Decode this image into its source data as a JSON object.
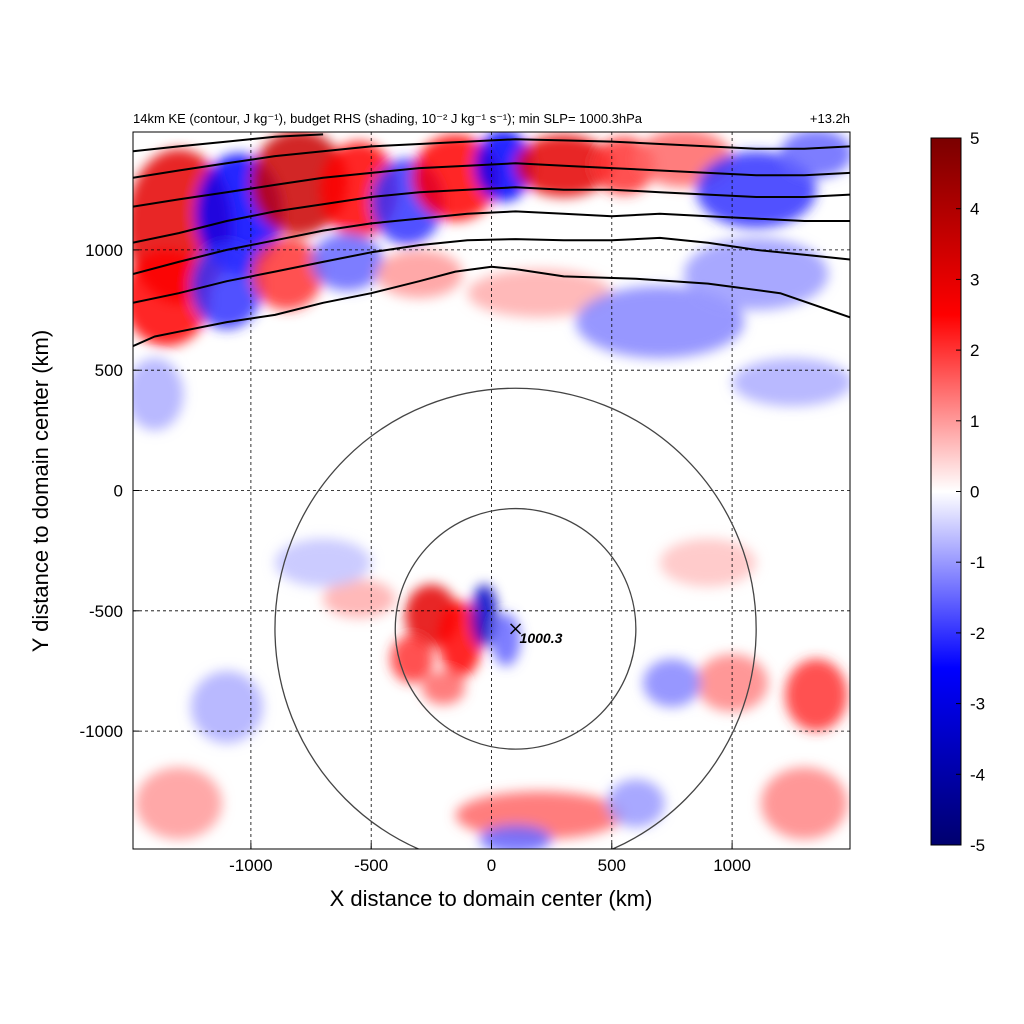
{
  "title_left": "14km KE (contour, J kg⁻¹), budget RHS (shading, 10⁻² J kg⁻¹ s⁻¹); min SLP= 1000.3hPa",
  "title_right": "+13.2h",
  "chart_data": {
    "type": "heatmap",
    "xlabel": "X distance to domain center (km)",
    "ylabel": "Y distance to domain center (km)",
    "xlim": [
      -1490,
      1490
    ],
    "ylim": [
      -1490,
      1490
    ],
    "x_ticks": [
      -1000,
      -500,
      0,
      500,
      1000
    ],
    "y_ticks": [
      -1000,
      -500,
      0,
      500,
      1000
    ],
    "x_tick_labels": [
      "-1000",
      "-500",
      "0",
      "500",
      "1000"
    ],
    "y_tick_labels": [
      "-1000",
      "-500",
      "0",
      "500",
      "1000"
    ],
    "grid": true,
    "colorbar": {
      "min": -5,
      "max": 5,
      "ticks": [
        5,
        4,
        3,
        2,
        1,
        0,
        -1,
        -2,
        -3,
        -4,
        -5
      ],
      "tick_labels": [
        "5",
        "4",
        "3",
        "2",
        "1",
        "0",
        "-1",
        "-2",
        "-3",
        "-4",
        "-5"
      ],
      "colors": [
        "#00006e",
        "#0000ff",
        "#ffffff",
        "#ff0000",
        "#7a0000"
      ]
    },
    "storm_center": {
      "x": 100,
      "y": -575,
      "label": "1000.3"
    },
    "range_rings_km": [
      500,
      1000
    ],
    "ke_contours": [
      {
        "points": [
          [
            -1490,
            600
          ],
          [
            -1400,
            640
          ],
          [
            -1300,
            660
          ],
          [
            -1100,
            700
          ],
          [
            -900,
            730
          ],
          [
            -700,
            780
          ],
          [
            -500,
            820
          ],
          [
            -300,
            870
          ],
          [
            -150,
            910
          ],
          [
            0,
            930
          ],
          [
            100,
            920
          ],
          [
            300,
            890
          ],
          [
            600,
            880
          ],
          [
            900,
            860
          ],
          [
            1200,
            820
          ],
          [
            1490,
            720
          ]
        ]
      },
      {
        "points": [
          [
            -1490,
            780
          ],
          [
            -1300,
            820
          ],
          [
            -1100,
            870
          ],
          [
            -900,
            910
          ],
          [
            -700,
            950
          ],
          [
            -500,
            990
          ],
          [
            -300,
            1020
          ],
          [
            -100,
            1040
          ],
          [
            100,
            1045
          ],
          [
            300,
            1040
          ],
          [
            500,
            1040
          ],
          [
            700,
            1050
          ],
          [
            900,
            1030
          ],
          [
            1100,
            1000
          ],
          [
            1300,
            980
          ],
          [
            1490,
            960
          ]
        ]
      },
      {
        "points": [
          [
            -1490,
            900
          ],
          [
            -1300,
            950
          ],
          [
            -1100,
            1000
          ],
          [
            -900,
            1040
          ],
          [
            -700,
            1080
          ],
          [
            -500,
            1110
          ],
          [
            -300,
            1130
          ],
          [
            -100,
            1150
          ],
          [
            100,
            1160
          ],
          [
            300,
            1150
          ],
          [
            500,
            1140
          ],
          [
            700,
            1150
          ],
          [
            900,
            1140
          ],
          [
            1100,
            1130
          ],
          [
            1300,
            1120
          ],
          [
            1490,
            1120
          ]
        ]
      },
      {
        "points": [
          [
            -1490,
            1030
          ],
          [
            -1300,
            1070
          ],
          [
            -1100,
            1120
          ],
          [
            -900,
            1160
          ],
          [
            -700,
            1190
          ],
          [
            -500,
            1220
          ],
          [
            -300,
            1240
          ],
          [
            -100,
            1250
          ],
          [
            100,
            1260
          ],
          [
            300,
            1250
          ],
          [
            500,
            1250
          ],
          [
            700,
            1240
          ],
          [
            900,
            1230
          ],
          [
            1100,
            1220
          ],
          [
            1300,
            1220
          ],
          [
            1490,
            1230
          ]
        ]
      },
      {
        "points": [
          [
            -1490,
            1180
          ],
          [
            -1300,
            1210
          ],
          [
            -1100,
            1240
          ],
          [
            -900,
            1270
          ],
          [
            -700,
            1300
          ],
          [
            -500,
            1320
          ],
          [
            -300,
            1340
          ],
          [
            -100,
            1350
          ],
          [
            100,
            1360
          ],
          [
            300,
            1350
          ],
          [
            500,
            1340
          ],
          [
            700,
            1330
          ],
          [
            900,
            1320
          ],
          [
            1100,
            1310
          ],
          [
            1300,
            1310
          ],
          [
            1490,
            1320
          ]
        ]
      },
      {
        "points": [
          [
            -1490,
            1300
          ],
          [
            -1300,
            1330
          ],
          [
            -1100,
            1360
          ],
          [
            -900,
            1390
          ],
          [
            -700,
            1410
          ],
          [
            -500,
            1430
          ],
          [
            -300,
            1440
          ],
          [
            -100,
            1450
          ],
          [
            100,
            1460
          ],
          [
            300,
            1455
          ],
          [
            500,
            1450
          ],
          [
            700,
            1440
          ],
          [
            900,
            1430
          ],
          [
            1100,
            1420
          ],
          [
            1300,
            1420
          ],
          [
            1490,
            1430
          ]
        ]
      },
      {
        "points": [
          [
            -1490,
            1410
          ],
          [
            -1300,
            1430
          ],
          [
            -1100,
            1450
          ],
          [
            -900,
            1470
          ],
          [
            -700,
            1480
          ]
        ]
      }
    ],
    "shading_blobs": [
      {
        "x": -1300,
        "y": 1100,
        "rx": 220,
        "ry": 320,
        "v": 3.0
      },
      {
        "x": -1050,
        "y": 1150,
        "rx": 180,
        "ry": 250,
        "v": -2.5
      },
      {
        "x": -800,
        "y": 1280,
        "rx": 200,
        "ry": 220,
        "v": 3.5
      },
      {
        "x": -550,
        "y": 1250,
        "rx": 160,
        "ry": 200,
        "v": 2.5
      },
      {
        "x": -350,
        "y": 1200,
        "rx": 150,
        "ry": 180,
        "v": -2.0
      },
      {
        "x": -150,
        "y": 1300,
        "rx": 180,
        "ry": 180,
        "v": 2.5
      },
      {
        "x": 50,
        "y": 1350,
        "rx": 120,
        "ry": 150,
        "v": -2.5
      },
      {
        "x": 300,
        "y": 1350,
        "rx": 200,
        "ry": 130,
        "v": 3.0
      },
      {
        "x": 550,
        "y": 1350,
        "rx": 130,
        "ry": 120,
        "v": 2.0
      },
      {
        "x": 800,
        "y": 1380,
        "rx": 200,
        "ry": 120,
        "v": 1.5
      },
      {
        "x": 1100,
        "y": 1250,
        "rx": 250,
        "ry": 160,
        "v": -2.0
      },
      {
        "x": 1350,
        "y": 1400,
        "rx": 150,
        "ry": 100,
        "v": -1.5
      },
      {
        "x": -1350,
        "y": 800,
        "rx": 180,
        "ry": 200,
        "v": 2.5
      },
      {
        "x": -1100,
        "y": 850,
        "rx": 150,
        "ry": 180,
        "v": -2.0
      },
      {
        "x": -850,
        "y": 900,
        "rx": 150,
        "ry": 150,
        "v": 2.0
      },
      {
        "x": -600,
        "y": 950,
        "rx": 150,
        "ry": 120,
        "v": -1.5
      },
      {
        "x": -300,
        "y": 900,
        "rx": 180,
        "ry": 100,
        "v": 1.0
      },
      {
        "x": 200,
        "y": 820,
        "rx": 300,
        "ry": 100,
        "v": 0.8
      },
      {
        "x": 700,
        "y": 700,
        "rx": 350,
        "ry": 150,
        "v": -1.2
      },
      {
        "x": 1100,
        "y": 900,
        "rx": 300,
        "ry": 150,
        "v": -1.0
      },
      {
        "x": 1250,
        "y": 450,
        "rx": 250,
        "ry": 100,
        "v": -0.8
      },
      {
        "x": -1400,
        "y": 400,
        "rx": 120,
        "ry": 150,
        "v": -0.8
      },
      {
        "x": -250,
        "y": -520,
        "rx": 110,
        "ry": 130,
        "v": 3.0
      },
      {
        "x": -130,
        "y": -620,
        "rx": 90,
        "ry": 160,
        "v": 2.5
      },
      {
        "x": -30,
        "y": -520,
        "rx": 55,
        "ry": 130,
        "v": -3.5
      },
      {
        "x": 60,
        "y": -620,
        "rx": 60,
        "ry": 110,
        "v": -1.5
      },
      {
        "x": -330,
        "y": -700,
        "rx": 90,
        "ry": 100,
        "v": 2.0
      },
      {
        "x": -200,
        "y": -820,
        "rx": 90,
        "ry": 70,
        "v": 1.5
      },
      {
        "x": -550,
        "y": -450,
        "rx": 150,
        "ry": 80,
        "v": 0.8
      },
      {
        "x": 1000,
        "y": -800,
        "rx": 150,
        "ry": 120,
        "v": 1.2
      },
      {
        "x": 1350,
        "y": -850,
        "rx": 130,
        "ry": 150,
        "v": 2.0
      },
      {
        "x": 750,
        "y": -800,
        "rx": 120,
        "ry": 100,
        "v": -1.2
      },
      {
        "x": 200,
        "y": -1350,
        "rx": 350,
        "ry": 100,
        "v": 1.5
      },
      {
        "x": 100,
        "y": -1450,
        "rx": 150,
        "ry": 60,
        "v": -1.5
      },
      {
        "x": -1300,
        "y": -1300,
        "rx": 180,
        "ry": 150,
        "v": 1.0
      },
      {
        "x": -1100,
        "y": -900,
        "rx": 150,
        "ry": 150,
        "v": -0.8
      },
      {
        "x": 1300,
        "y": -1300,
        "rx": 180,
        "ry": 150,
        "v": 1.2
      },
      {
        "x": 600,
        "y": -1300,
        "rx": 120,
        "ry": 100,
        "v": -1.0
      },
      {
        "x": -700,
        "y": -300,
        "rx": 200,
        "ry": 100,
        "v": -0.6
      },
      {
        "x": 900,
        "y": -300,
        "rx": 200,
        "ry": 100,
        "v": 0.6
      }
    ]
  }
}
